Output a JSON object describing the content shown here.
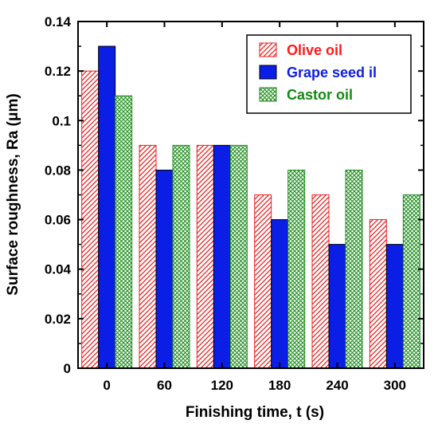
{
  "chart_data": {
    "type": "bar",
    "title": "",
    "xlabel": "Finishing time, t (s)",
    "ylabel": "Surface roughness, Ra (μm)",
    "categories": [
      "0",
      "60",
      "120",
      "180",
      "240",
      "300"
    ],
    "ylim": [
      0,
      0.14
    ],
    "yticks": [
      "0",
      "0.02",
      "0.04",
      "0.06",
      "0.08",
      "0.1",
      "0.12",
      "0.14"
    ],
    "grid": false,
    "legend_position": "top-right",
    "series": [
      {
        "name": "Olive oil",
        "values": [
          0.12,
          0.09,
          0.09,
          0.07,
          0.07,
          0.06
        ],
        "color": "#e8201e",
        "fill": "diagonal-hatch",
        "label_color": "#ff1a1a"
      },
      {
        "name": "Grape seed il",
        "values": [
          0.13,
          0.08,
          0.09,
          0.06,
          0.05,
          0.05
        ],
        "color": "#0a1ee6",
        "fill": "solid",
        "label_color": "#1020e0"
      },
      {
        "name": "Castor oil",
        "values": [
          0.11,
          0.09,
          0.09,
          0.08,
          0.08,
          0.07
        ],
        "color": "#1e8c1e",
        "fill": "crosshatch",
        "label_color": "#128a12"
      }
    ]
  }
}
